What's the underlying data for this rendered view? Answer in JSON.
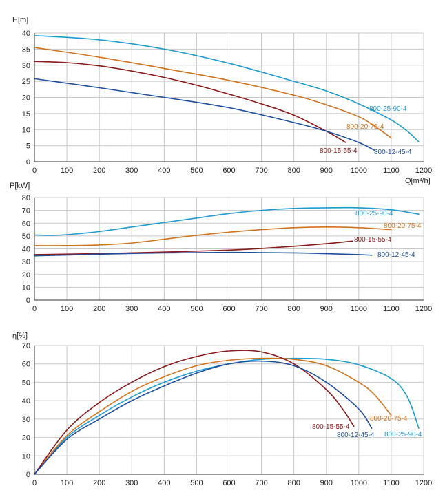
{
  "chart_data": [
    {
      "type": "line",
      "ylabel": "H[m]",
      "xlabel": "Q[m³/h]",
      "xlim": [
        0,
        1200
      ],
      "ylim": [
        0,
        40
      ],
      "xticks": [
        0,
        100,
        200,
        300,
        400,
        500,
        600,
        700,
        800,
        900,
        1000,
        1100,
        1200
      ],
      "yticks": [
        0,
        5,
        10,
        15,
        20,
        25,
        30,
        35,
        40
      ],
      "grid": true,
      "series": [
        {
          "name": "800-25-90-4",
          "color": "#1f9bd0",
          "x": [
            0,
            200,
            400,
            600,
            800,
            900,
            1000,
            1100,
            1150,
            1185
          ],
          "y": [
            39.2,
            37.9,
            35.0,
            30.6,
            25.0,
            22.0,
            18.0,
            13.0,
            9.5,
            6.2
          ]
        },
        {
          "name": "800-20-75-4",
          "color": "#d0731f",
          "x": [
            0,
            200,
            400,
            600,
            800,
            900,
            1000,
            1050,
            1100
          ],
          "y": [
            35.5,
            32.5,
            29.0,
            25.3,
            20.7,
            17.7,
            14.0,
            11.0,
            7.4
          ]
        },
        {
          "name": "800-15-55-4",
          "color": "#8b1a1a",
          "x": [
            0,
            100,
            200,
            300,
            400,
            500,
            600,
            700,
            800,
            900,
            960
          ],
          "y": [
            31.2,
            30.8,
            29.8,
            28.2,
            26.2,
            23.8,
            21.0,
            18.0,
            14.5,
            9.5,
            6.0
          ]
        },
        {
          "name": "800-12-45-4",
          "color": "#1f4f9f",
          "x": [
            0,
            200,
            400,
            600,
            800,
            900,
            1000,
            1050
          ],
          "y": [
            25.8,
            23.0,
            20.0,
            16.8,
            12.2,
            9.5,
            6.0,
            3.5
          ]
        }
      ]
    },
    {
      "type": "line",
      "ylabel": "P[kW]",
      "xlabel": "",
      "xlim": [
        0,
        1200
      ],
      "ylim": [
        0,
        80
      ],
      "xticks": [
        0,
        100,
        200,
        300,
        400,
        500,
        600,
        700,
        800,
        900,
        1000,
        1100,
        1200
      ],
      "yticks": [
        0,
        10,
        20,
        30,
        40,
        50,
        60,
        70,
        80
      ],
      "grid": true,
      "series": [
        {
          "name": "800-25-90-4",
          "color": "#1f9bd0",
          "x": [
            0,
            50,
            100,
            200,
            300,
            400,
            500,
            600,
            700,
            800,
            900,
            1000,
            1100,
            1185
          ],
          "y": [
            50.8,
            50.5,
            51.0,
            53.5,
            57.0,
            60.5,
            64.0,
            67.5,
            70.0,
            71.5,
            72.0,
            72.0,
            70.5,
            67.0
          ]
        },
        {
          "name": "800-20-75-4",
          "color": "#d0731f",
          "x": [
            0,
            100,
            200,
            300,
            400,
            500,
            600,
            700,
            800,
            900,
            1000,
            1100
          ],
          "y": [
            42.5,
            42.5,
            43.0,
            44.5,
            47.5,
            50.5,
            53.0,
            55.0,
            56.5,
            57.0,
            56.5,
            55.0
          ]
        },
        {
          "name": "800-15-55-4",
          "color": "#8b1a1a",
          "x": [
            0,
            200,
            400,
            600,
            700,
            800,
            900,
            980
          ],
          "y": [
            35.5,
            36.3,
            37.5,
            39.0,
            40.3,
            42.0,
            44.0,
            46.0
          ]
        },
        {
          "name": "800-12-45-4",
          "color": "#1f4f9f",
          "x": [
            0,
            200,
            400,
            600,
            800,
            900,
            1000,
            1040
          ],
          "y": [
            34.5,
            35.8,
            36.8,
            37.2,
            36.8,
            36.2,
            35.5,
            35.0
          ]
        }
      ]
    },
    {
      "type": "line",
      "ylabel": "η[%]",
      "xlabel": "",
      "xlim": [
        0,
        1200
      ],
      "ylim": [
        0,
        70
      ],
      "xticks": [
        0,
        100,
        200,
        300,
        400,
        500,
        600,
        700,
        800,
        900,
        1000,
        1100,
        1200
      ],
      "yticks": [
        0,
        10,
        20,
        30,
        40,
        50,
        60,
        70
      ],
      "grid": true,
      "series": [
        {
          "name": "800-25-90-4",
          "color": "#1f9bd0",
          "x": [
            0,
            100,
            200,
            300,
            400,
            500,
            600,
            700,
            800,
            900,
            1000,
            1100,
            1150,
            1185
          ],
          "y": [
            0,
            20.0,
            32.0,
            42.0,
            50.0,
            56.0,
            60.0,
            62.5,
            63.0,
            62.5,
            59.5,
            52.0,
            42.0,
            25.0
          ]
        },
        {
          "name": "800-20-75-4",
          "color": "#d0731f",
          "x": [
            0,
            100,
            200,
            300,
            400,
            500,
            600,
            700,
            800,
            900,
            1000,
            1050,
            1100
          ],
          "y": [
            0,
            21.0,
            34.0,
            45.0,
            53.0,
            59.0,
            62.0,
            63.0,
            62.5,
            59.0,
            50.0,
            43.0,
            32.0
          ]
        },
        {
          "name": "800-15-55-4",
          "color": "#8b1a1a",
          "x": [
            0,
            100,
            200,
            300,
            400,
            500,
            600,
            700,
            800,
            900,
            950,
            985
          ],
          "y": [
            0,
            24.0,
            39.0,
            50.0,
            58.5,
            64.0,
            67.0,
            66.5,
            60.0,
            46.0,
            35.5,
            26.0
          ]
        },
        {
          "name": "800-12-45-4",
          "color": "#1f4f9f",
          "x": [
            0,
            100,
            200,
            300,
            400,
            500,
            600,
            700,
            800,
            900,
            1000,
            1040
          ],
          "y": [
            0,
            19.0,
            30.0,
            40.0,
            48.0,
            55.0,
            60.0,
            61.5,
            59.0,
            50.0,
            35.5,
            25.0
          ]
        }
      ]
    }
  ]
}
